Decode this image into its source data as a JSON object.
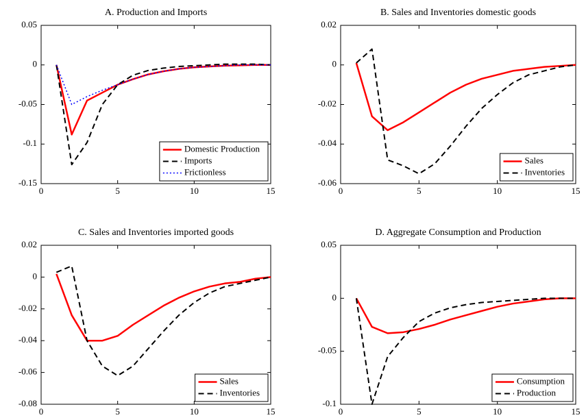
{
  "chart_data": [
    {
      "type": "line",
      "title": "A. Production and Imports",
      "x": [
        1,
        2,
        3,
        4,
        5,
        6,
        7,
        8,
        9,
        10,
        11,
        12,
        13,
        14,
        15
      ],
      "xlim": [
        0,
        15
      ],
      "xticks": [
        0,
        5,
        10,
        15
      ],
      "ylim": [
        -0.15,
        0.05
      ],
      "yticks": [
        -0.15,
        -0.1,
        -0.05,
        0,
        0.05
      ],
      "grid": false,
      "legend": "lower right",
      "series": [
        {
          "name": "Domestic Production",
          "color": "#ff0000",
          "line_style": "solid",
          "values": [
            0,
            -0.088,
            -0.045,
            -0.035,
            -0.025,
            -0.018,
            -0.012,
            -0.008,
            -0.005,
            -0.003,
            -0.002,
            -0.001,
            -0.0005,
            0,
            0
          ]
        },
        {
          "name": "Imports",
          "color": "#000000",
          "line_style": "dashed",
          "values": [
            0,
            -0.126,
            -0.098,
            -0.05,
            -0.025,
            -0.013,
            -0.007,
            -0.004,
            -0.002,
            -0.001,
            0,
            0.001,
            0.001,
            0.001,
            0
          ]
        },
        {
          "name": "Frictionless",
          "color": "#0000ff",
          "line_style": "dotted",
          "values": [
            0,
            -0.05,
            -0.04,
            -0.032,
            -0.025,
            -0.018,
            -0.012,
            -0.008,
            -0.005,
            -0.003,
            -0.002,
            -0.001,
            0,
            0,
            0
          ]
        }
      ]
    },
    {
      "type": "line",
      "title": "B. Sales and Inventories domestic goods",
      "x": [
        1,
        2,
        3,
        4,
        5,
        6,
        7,
        8,
        9,
        10,
        11,
        12,
        13,
        14,
        15
      ],
      "xlim": [
        0,
        15
      ],
      "xticks": [
        0,
        5,
        10,
        15
      ],
      "ylim": [
        -0.06,
        0.02
      ],
      "yticks": [
        -0.06,
        -0.04,
        -0.02,
        0,
        0.02
      ],
      "grid": false,
      "legend": "lower right",
      "series": [
        {
          "name": "Sales",
          "color": "#ff0000",
          "line_style": "solid",
          "values": [
            0.001,
            -0.026,
            -0.033,
            -0.029,
            -0.024,
            -0.019,
            -0.014,
            -0.01,
            -0.007,
            -0.005,
            -0.003,
            -0.002,
            -0.001,
            -0.0005,
            0
          ]
        },
        {
          "name": "Inventories",
          "color": "#000000",
          "line_style": "dashed",
          "values": [
            0.001,
            0.008,
            -0.048,
            -0.051,
            -0.055,
            -0.05,
            -0.041,
            -0.031,
            -0.022,
            -0.015,
            -0.009,
            -0.005,
            -0.003,
            -0.001,
            0
          ]
        }
      ]
    },
    {
      "type": "line",
      "title": "C. Sales and Inventories imported goods",
      "x": [
        1,
        2,
        3,
        4,
        5,
        6,
        7,
        8,
        9,
        10,
        11,
        12,
        13,
        14,
        15
      ],
      "xlim": [
        0,
        15
      ],
      "xticks": [
        0,
        5,
        10,
        15
      ],
      "ylim": [
        -0.08,
        0.02
      ],
      "yticks": [
        -0.08,
        -0.06,
        -0.04,
        -0.02,
        0,
        0.02
      ],
      "grid": false,
      "legend": "lower right",
      "series": [
        {
          "name": "Sales",
          "color": "#ff0000",
          "line_style": "solid",
          "values": [
            0.002,
            -0.024,
            -0.04,
            -0.04,
            -0.037,
            -0.03,
            -0.024,
            -0.018,
            -0.013,
            -0.009,
            -0.006,
            -0.004,
            -0.003,
            -0.001,
            0
          ]
        },
        {
          "name": "Inventories",
          "color": "#000000",
          "line_style": "dashed",
          "values": [
            0.003,
            0.007,
            -0.04,
            -0.056,
            -0.062,
            -0.056,
            -0.045,
            -0.034,
            -0.024,
            -0.016,
            -0.01,
            -0.006,
            -0.004,
            -0.002,
            0
          ]
        }
      ]
    },
    {
      "type": "line",
      "title": "D. Aggregate Consumption and Production",
      "x": [
        1,
        2,
        3,
        4,
        5,
        6,
        7,
        8,
        9,
        10,
        11,
        12,
        13,
        14,
        15
      ],
      "xlim": [
        0,
        15
      ],
      "xticks": [
        0,
        5,
        10,
        15
      ],
      "ylim": [
        -0.1,
        0.05
      ],
      "yticks": [
        -0.1,
        -0.05,
        0,
        0.05
      ],
      "grid": false,
      "legend": "lower right",
      "series": [
        {
          "name": "Consumption",
          "color": "#ff0000",
          "line_style": "solid",
          "values": [
            0,
            -0.027,
            -0.033,
            -0.032,
            -0.029,
            -0.025,
            -0.02,
            -0.016,
            -0.012,
            -0.008,
            -0.005,
            -0.003,
            -0.001,
            0,
            0
          ]
        },
        {
          "name": "Production",
          "color": "#000000",
          "line_style": "dashed",
          "values": [
            0,
            -0.1,
            -0.055,
            -0.037,
            -0.022,
            -0.014,
            -0.009,
            -0.006,
            -0.004,
            -0.003,
            -0.002,
            -0.001,
            0,
            0,
            0
          ]
        }
      ]
    }
  ]
}
